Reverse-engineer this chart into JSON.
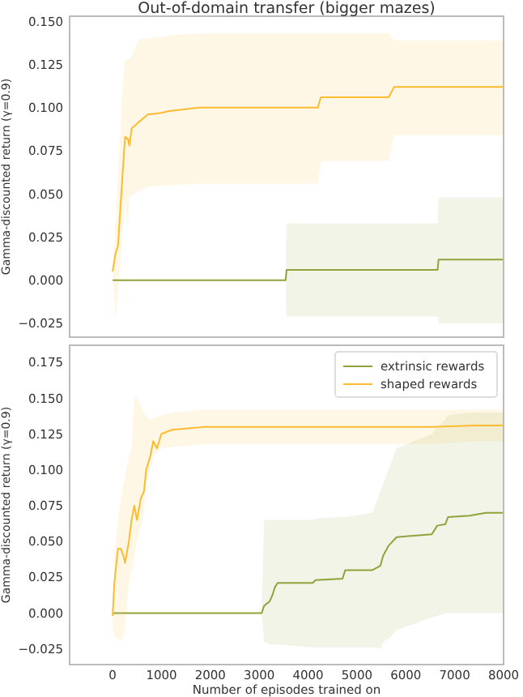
{
  "chart_data": [
    {
      "type": "line",
      "title": "Out-of-domain transfer (bigger mazes)",
      "ylabel": "Gamma-discounted return (γ=0.9)",
      "xlim": [
        -880,
        8000
      ],
      "xticks": [
        0,
        1000,
        2000,
        3000,
        4000,
        5000,
        6000,
        7000,
        8000
      ],
      "ylim": [
        -0.033,
        0.153
      ],
      "yticks": [
        {
          "value": -0.025,
          "label": "−0.025"
        },
        {
          "value": 0,
          "label": "0.000"
        },
        {
          "value": 0.025,
          "label": "0.025"
        },
        {
          "value": 0.05,
          "label": "0.050"
        },
        {
          "value": 0.075,
          "label": "0.075"
        },
        {
          "value": 0.1,
          "label": "0.100"
        },
        {
          "value": 0.125,
          "label": "0.125"
        },
        {
          "value": 0.15,
          "label": "0.150"
        }
      ],
      "tick_labels": "y",
      "grid": false,
      "legend": false,
      "series": [
        {
          "color": "#fdbb2f",
          "x": [
            0,
            55,
            110,
            200,
            255,
            310,
            343,
            390,
            550,
            720,
            1000,
            1160,
            1770,
            4200,
            4260,
            5650,
            5760,
            8000
          ],
          "values": [
            0.005,
            0.015,
            0.02,
            0.06,
            0.083,
            0.082,
            0.078,
            0.088,
            0.092,
            0.096,
            0.097,
            0.098,
            0.1,
            0.1,
            0.106,
            0.106,
            0.112,
            0.112
          ],
          "lower": [
            0.003,
            -0.022,
            -0.01,
            0.03,
            0.045,
            0.03,
            0.048,
            0.049,
            0.052,
            0.054,
            0.055,
            0.055,
            0.056,
            0.056,
            0.069,
            0.069,
            0.084,
            0.084
          ],
          "upper": [
            0.007,
            0.03,
            0.06,
            0.11,
            0.128,
            0.128,
            0.128,
            0.13,
            0.14,
            0.14,
            0.141,
            0.142,
            0.143,
            0.143,
            0.143,
            0.143,
            0.139,
            0.139
          ]
        },
        {
          "color": "#8fa33a",
          "x": [
            0,
            3540,
            3560,
            6650,
            6670,
            8000
          ],
          "values": [
            0,
            0,
            0.006,
            0.006,
            0.012,
            0.012
          ],
          "lower": [
            0,
            0,
            -0.021,
            -0.021,
            -0.025,
            -0.025
          ],
          "upper": [
            0,
            0,
            0.033,
            0.033,
            0.048,
            0.048
          ]
        }
      ]
    },
    {
      "type": "line",
      "xlabel": "Number of episodes trained on",
      "ylabel": "Gamma-discounted return (γ=0.9)",
      "xlim": [
        -880,
        8000
      ],
      "xticks": [
        0,
        1000,
        2000,
        3000,
        4000,
        5000,
        6000,
        7000,
        8000
      ],
      "ylim": [
        -0.036,
        0.187
      ],
      "yticks": [
        {
          "value": -0.025,
          "label": "−0.025"
        },
        {
          "value": 0,
          "label": "0.000"
        },
        {
          "value": 0.025,
          "label": "0.025"
        },
        {
          "value": 0.05,
          "label": "0.050"
        },
        {
          "value": 0.075,
          "label": "0.075"
        },
        {
          "value": 0.1,
          "label": "0.100"
        },
        {
          "value": 0.125,
          "label": "0.125"
        },
        {
          "value": 0.15,
          "label": "0.150"
        },
        {
          "value": 0.175,
          "label": "0.175"
        }
      ],
      "grid": false,
      "legend": "top right",
      "series": [
        {
          "name": "extrinsic rewards",
          "color": "#8fa33a",
          "x": [
            0,
            3050,
            3100,
            3210,
            3265,
            3320,
            3376,
            4096,
            4151,
            4705,
            4760,
            5314,
            5480,
            5535,
            5646,
            5812,
            6531,
            6642,
            6808,
            6863,
            7306,
            7638,
            8000
          ],
          "values": [
            0,
            0,
            0.005,
            0.008,
            0.012,
            0.018,
            0.021,
            0.021,
            0.023,
            0.024,
            0.03,
            0.03,
            0.033,
            0.04,
            0.047,
            0.053,
            0.055,
            0.061,
            0.062,
            0.067,
            0.068,
            0.07,
            0.07
          ],
          "lower": [
            0,
            0,
            -0.02,
            -0.022,
            -0.022,
            -0.022,
            -0.022,
            -0.024,
            -0.024,
            -0.024,
            -0.024,
            -0.024,
            -0.025,
            -0.02,
            -0.018,
            -0.012,
            -0.003,
            -0.002,
            0,
            0,
            0,
            0,
            0
          ],
          "upper": [
            0,
            0,
            0.065,
            0.065,
            0.065,
            0.065,
            0.065,
            0.065,
            0.066,
            0.067,
            0.067,
            0.07,
            0.085,
            0.09,
            0.1,
            0.115,
            0.125,
            0.13,
            0.135,
            0.138,
            0.14,
            0.14,
            0.14
          ]
        },
        {
          "name": "shaped rewards",
          "color": "#fdbb2f",
          "x": [
            0,
            33,
            77,
            111,
            166,
            221,
            255,
            332,
            387,
            443,
            498,
            576,
            642,
            686,
            731,
            775,
            830,
            908,
            996,
            1218,
            1550,
            1882,
            6531,
            7417,
            8000
          ],
          "values": [
            -0.002,
            0.02,
            0.035,
            0.045,
            0.045,
            0.04,
            0.035,
            0.05,
            0.065,
            0.075,
            0.065,
            0.08,
            0.085,
            0.1,
            0.105,
            0.11,
            0.12,
            0.115,
            0.125,
            0.128,
            0.129,
            0.13,
            0.13,
            0.131,
            0.131
          ],
          "lower": [
            -0.012,
            -0.015,
            -0.018,
            -0.018,
            -0.02,
            -0.015,
            -0.01,
            0.02,
            0.03,
            0.04,
            0.05,
            0.06,
            0.07,
            0.09,
            0.095,
            0.1,
            0.11,
            0.112,
            0.115,
            0.116,
            0.117,
            0.118,
            0.118,
            0.12,
            0.12
          ],
          "upper": [
            0.005,
            0.04,
            0.055,
            0.065,
            0.08,
            0.09,
            0.095,
            0.11,
            0.115,
            0.15,
            0.15,
            0.145,
            0.14,
            0.138,
            0.136,
            0.135,
            0.136,
            0.137,
            0.138,
            0.14,
            0.141,
            0.142,
            0.142,
            0.142,
            0.142
          ]
        }
      ]
    }
  ]
}
